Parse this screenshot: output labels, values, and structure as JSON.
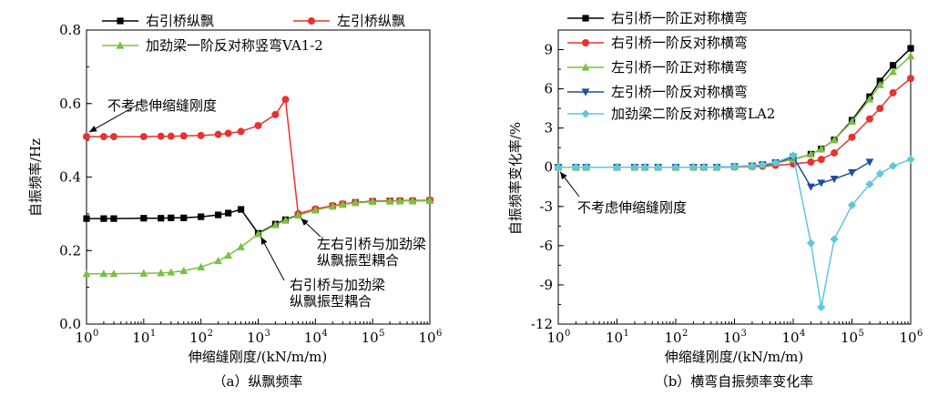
{
  "chart_data": [
    {
      "type": "line",
      "caption": "（a）纵飘频率",
      "xlabel": "伸缩缝刚度/(kN/m/m)",
      "ylabel": "自振频率/Hz",
      "xscale": "log",
      "xlim": [
        1,
        1000000
      ],
      "ylim": [
        0,
        0.8
      ],
      "xticks": [
        {
          "base": "10",
          "exp": "0"
        },
        {
          "base": "10",
          "exp": "1"
        },
        {
          "base": "10",
          "exp": "2"
        },
        {
          "base": "10",
          "exp": "3"
        },
        {
          "base": "10",
          "exp": "4"
        },
        {
          "base": "10",
          "exp": "5"
        },
        {
          "base": "10",
          "exp": "6"
        }
      ],
      "yticks": [
        "0.0",
        "0.2",
        "0.4",
        "0.6",
        "0.8"
      ],
      "grid": false,
      "legend_position": "top",
      "series": [
        {
          "name": "右引桥纵飘",
          "color": "#000000",
          "marker": "square",
          "x": [
            1,
            2,
            3,
            10,
            20,
            30,
            50,
            100,
            200,
            300,
            500,
            1000,
            2000,
            3000,
            5000,
            10000,
            20000,
            30000,
            50000,
            100000,
            200000,
            300000,
            500000,
            1000000
          ],
          "y": [
            0.287,
            0.287,
            0.287,
            0.288,
            0.288,
            0.289,
            0.289,
            0.292,
            0.297,
            0.302,
            0.312,
            0.247,
            0.272,
            0.284,
            0.297,
            0.311,
            0.321,
            0.326,
            0.331,
            0.334,
            0.335,
            0.335,
            0.335,
            0.336
          ]
        },
        {
          "name": "左引桥纵飘",
          "color": "#e8322d",
          "marker": "circle",
          "x": [
            1,
            2,
            3,
            10,
            20,
            30,
            50,
            100,
            200,
            300,
            500,
            1000,
            2000,
            3000,
            5000,
            10000,
            20000,
            30000,
            50000,
            100000,
            200000,
            300000,
            500000,
            1000000
          ],
          "y": [
            0.51,
            0.51,
            0.51,
            0.51,
            0.511,
            0.511,
            0.512,
            0.513,
            0.516,
            0.519,
            0.524,
            0.54,
            0.57,
            0.611,
            0.3,
            0.313,
            0.322,
            0.327,
            0.331,
            0.334,
            0.335,
            0.336,
            0.336,
            0.337
          ]
        },
        {
          "name": "加劲梁一阶反对称竖弯VA1-2",
          "color": "#7ac143",
          "marker": "triangle-up",
          "x": [
            1,
            2,
            3,
            10,
            20,
            30,
            50,
            100,
            200,
            300,
            500,
            1000,
            2000,
            3000,
            5000,
            10000,
            20000,
            30000,
            50000,
            100000,
            200000,
            300000,
            500000,
            1000000
          ],
          "y": [
            0.137,
            0.137,
            0.137,
            0.138,
            0.139,
            0.141,
            0.145,
            0.155,
            0.172,
            0.187,
            0.21,
            0.245,
            0.27,
            0.282,
            0.296,
            0.31,
            0.32,
            0.325,
            0.33,
            0.333,
            0.334,
            0.335,
            0.335,
            0.336
          ]
        }
      ],
      "annotations": [
        {
          "text": "不考虑伸缩缝刚度",
          "target_x": 1,
          "target_y": 0.51
        },
        {
          "lines": [
            "左右引桥与加劲梁",
            "纵飘振型耦合"
          ],
          "target_x": 5000,
          "target_y": 0.3
        },
        {
          "lines": [
            "右引桥与加劲梁",
            "纵飘振型耦合"
          ],
          "target_x": 1000,
          "target_y": 0.247
        }
      ]
    },
    {
      "type": "line",
      "caption": "（b）横弯自振频率变化率",
      "xlabel": "伸缩缝刚度/(kN/m/m)",
      "ylabel": "自振频率变化率/%",
      "xscale": "log",
      "xlim": [
        1,
        1000000
      ],
      "ylim": [
        -12,
        10.5
      ],
      "xticks": [
        {
          "base": "10",
          "exp": "0"
        },
        {
          "base": "10",
          "exp": "1"
        },
        {
          "base": "10",
          "exp": "2"
        },
        {
          "base": "10",
          "exp": "3"
        },
        {
          "base": "10",
          "exp": "4"
        },
        {
          "base": "10",
          "exp": "5"
        },
        {
          "base": "10",
          "exp": "6"
        }
      ],
      "yticks": [
        "-12",
        "-9",
        "-6",
        "-3",
        "0",
        "3",
        "6",
        "9"
      ],
      "grid": false,
      "legend_position": "top-left",
      "series": [
        {
          "name": "右引桥一阶正对称横弯",
          "color": "#000000",
          "marker": "square",
          "x": [
            1,
            2,
            3,
            10,
            20,
            30,
            50,
            100,
            200,
            300,
            500,
            1000,
            2000,
            3000,
            5000,
            10000,
            20000,
            30000,
            50000,
            100000,
            200000,
            300000,
            500000,
            1000000
          ],
          "y": [
            0,
            0,
            0,
            0,
            0,
            0,
            0,
            0,
            0,
            0,
            0,
            0.05,
            0.1,
            0.2,
            0.35,
            0.6,
            1.0,
            1.4,
            2.1,
            3.6,
            5.4,
            6.6,
            7.8,
            9.1
          ]
        },
        {
          "name": "右引桥一阶反对称横弯",
          "color": "#e8322d",
          "marker": "circle",
          "x": [
            1,
            2,
            3,
            10,
            20,
            30,
            50,
            100,
            200,
            300,
            500,
            1000,
            2000,
            3000,
            5000,
            10000,
            20000,
            30000,
            50000,
            100000,
            200000,
            300000,
            500000,
            1000000
          ],
          "y": [
            0,
            0,
            0,
            0,
            0,
            0,
            0,
            0,
            0,
            0,
            0,
            0.02,
            0.05,
            0.08,
            0.15,
            0.25,
            0.4,
            0.6,
            1.1,
            2.3,
            3.7,
            4.5,
            5.7,
            6.8
          ]
        },
        {
          "name": "左引桥一阶正对称横弯",
          "color": "#7ac143",
          "marker": "triangle-up",
          "x": [
            1,
            2,
            3,
            10,
            20,
            30,
            50,
            100,
            200,
            300,
            500,
            1000,
            2000,
            3000,
            5000,
            10000,
            20000,
            30000,
            50000,
            100000,
            200000,
            300000,
            500000,
            1000000
          ],
          "y": [
            0,
            0,
            0,
            0,
            0,
            0,
            0,
            0,
            0,
            0,
            0,
            0.05,
            0.1,
            0.2,
            0.35,
            0.6,
            1.0,
            1.4,
            2.1,
            3.5,
            5.2,
            6.3,
            7.3,
            8.5
          ]
        },
        {
          "name": "左引桥一阶反对称横弯",
          "color": "#1f4e9c",
          "marker": "triangle-down",
          "x": [
            1,
            2,
            3,
            10,
            20,
            30,
            50,
            100,
            200,
            300,
            500,
            1000,
            2000,
            3000,
            5000,
            10000,
            20000,
            30000,
            50000,
            100000,
            200000
          ],
          "y": [
            0,
            0,
            0,
            0,
            0,
            0,
            0,
            0,
            0,
            0,
            0,
            0.05,
            0.1,
            0.15,
            0.3,
            0.8,
            -1.5,
            -1.2,
            -0.9,
            -0.4,
            0.4
          ]
        },
        {
          "name": "加劲梁二阶反对称横弯LA2",
          "color": "#5fc8d8",
          "marker": "diamond",
          "x": [
            1,
            2,
            3,
            10,
            20,
            30,
            50,
            100,
            200,
            300,
            500,
            1000,
            2000,
            3000,
            5000,
            10000,
            20000,
            30000,
            50000,
            100000,
            200000,
            300000,
            500000,
            1000000
          ],
          "y": [
            0,
            0,
            0,
            0,
            0,
            0,
            0,
            0,
            0,
            0,
            0,
            0.05,
            0.1,
            0.2,
            0.35,
            0.9,
            -5.8,
            -10.7,
            -5.5,
            -2.9,
            -1.3,
            -0.5,
            0.1,
            0.6
          ]
        }
      ],
      "annotations": [
        {
          "text": "不考虑伸缩缝刚度",
          "target_x": 1,
          "target_y": 0
        }
      ]
    }
  ]
}
